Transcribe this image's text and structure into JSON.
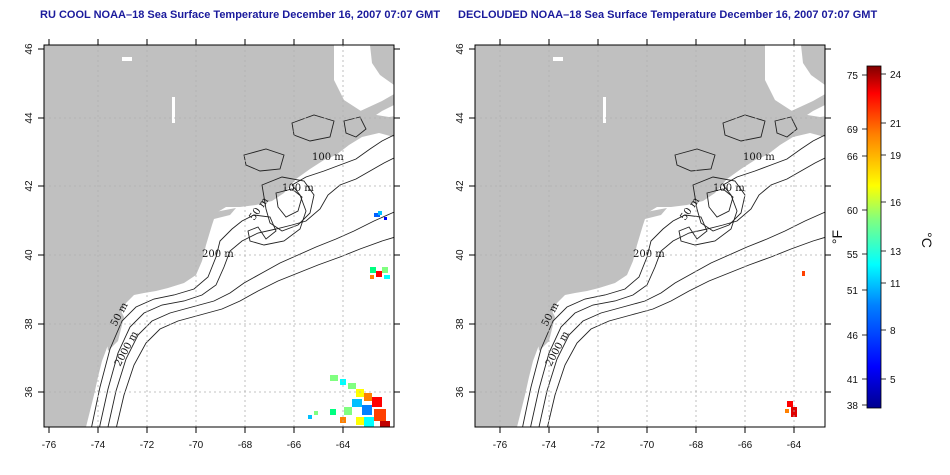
{
  "titles": {
    "left": "RU COOL NOAA–18 Sea Surface Temperature December 16, 2007 07:07 GMT",
    "right": "DECLOUDED NOAA–18 Sea Surface Temperature December 16, 2007 07:07 GMT"
  },
  "axes": {
    "lat_ticks": [
      "46",
      "44",
      "42",
      "40",
      "38",
      "36"
    ],
    "lon_ticks": [
      "-76",
      "-74",
      "-72",
      "-70",
      "-68",
      "-66",
      "-64"
    ]
  },
  "contour_labels": {
    "left": [
      "100 m",
      "100 m",
      "50 m",
      "200 m",
      "50 m",
      "2000 m"
    ],
    "right": [
      "100 m",
      "100 m",
      "50 m",
      "200 m",
      "50 m",
      "2000 m"
    ]
  },
  "colorbar": {
    "fahrenheit_unit": "°F",
    "celsius_unit": "°C",
    "fahrenheit_ticks": [
      "75",
      "69",
      "66",
      "60",
      "55",
      "51",
      "46",
      "41",
      "38"
    ],
    "celsius_ticks": [
      "24",
      "21",
      "19",
      "16",
      "13",
      "11",
      "8",
      "5"
    ]
  },
  "colors": {
    "land": "#c0c0c0",
    "ocean": "#ffffff",
    "title": "#1a1a9c",
    "grid": "#b0b0b0"
  }
}
